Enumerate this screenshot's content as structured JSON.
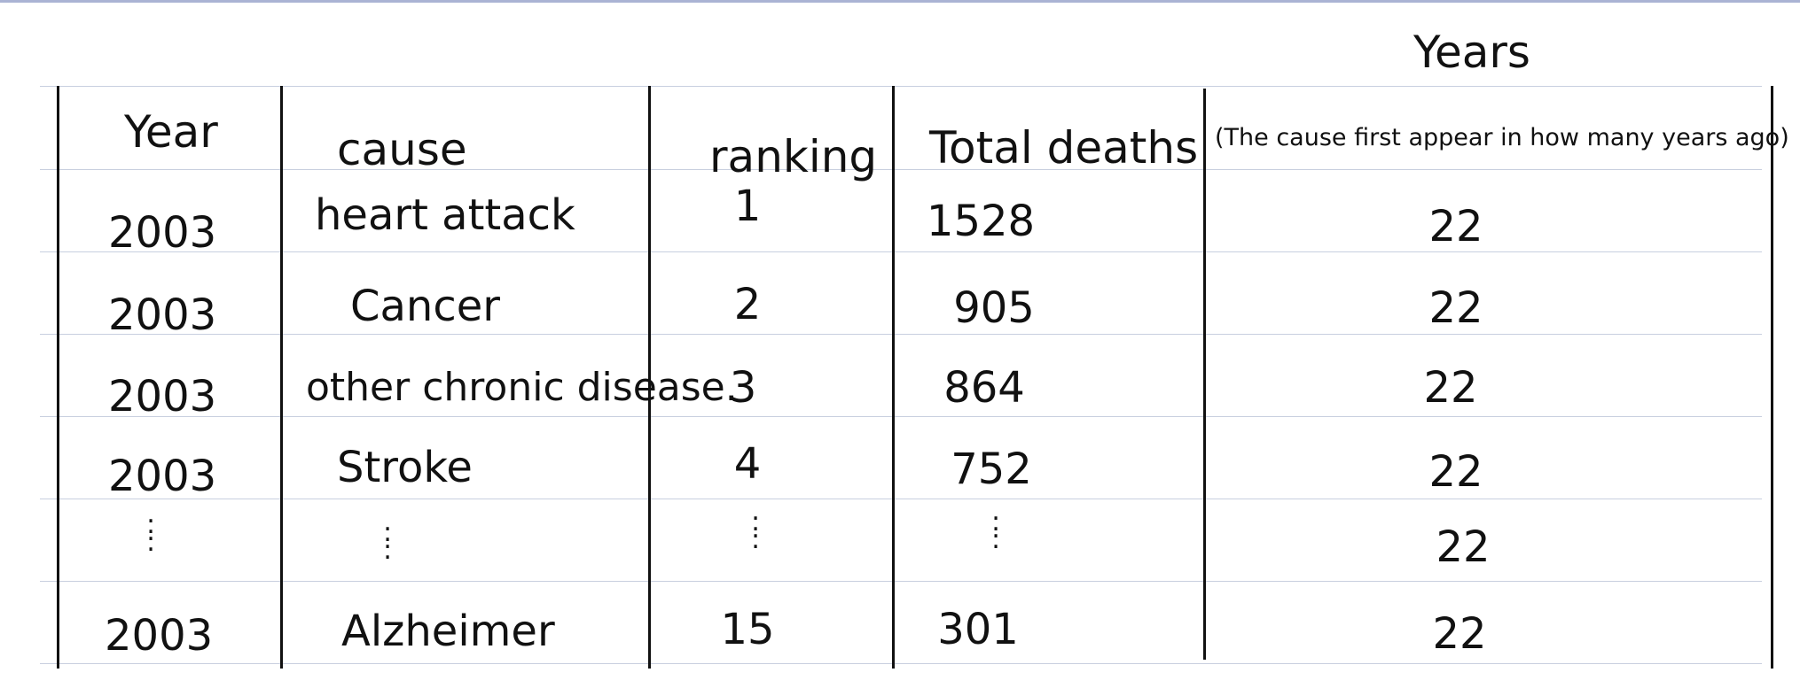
{
  "table": {
    "header_top": "Years",
    "headers": [
      "Year",
      "cause",
      "ranking",
      "Total deaths",
      "(The cause first appear in how many years ago)"
    ],
    "rows": [
      [
        "2003",
        "heart attack",
        "1",
        "1528",
        "22"
      ],
      [
        "2003",
        "Cancer",
        "2",
        "905",
        "22"
      ],
      [
        "2003",
        "other chronic disease.",
        "3",
        "864",
        "22"
      ],
      [
        "2003",
        "Stroke",
        "4",
        "752",
        "22"
      ],
      [
        ":",
        ":",
        ":",
        ":",
        "22"
      ],
      [
        "2003",
        "Alzheimer",
        "15",
        "301",
        "22"
      ]
    ]
  }
}
